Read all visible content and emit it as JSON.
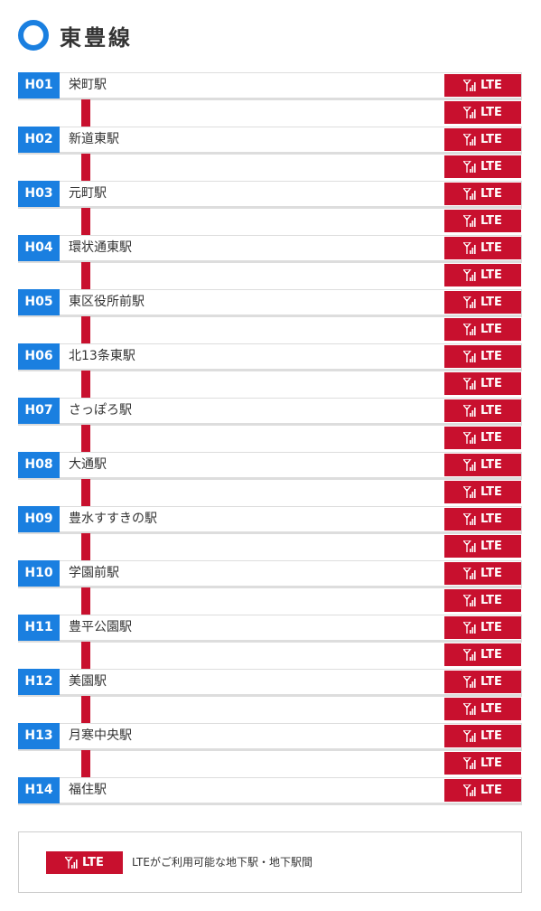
{
  "title": "東豊線",
  "stations": [
    {
      "code": "H01",
      "name": "栄町駅"
    },
    {
      "code": "H02",
      "name": "新道東駅"
    },
    {
      "code": "H03",
      "name": "元町駅"
    },
    {
      "code": "H04",
      "name": "環状通東駅"
    },
    {
      "code": "H05",
      "name": "東区役所前駅"
    },
    {
      "code": "H06",
      "name": "北13条東駅"
    },
    {
      "code": "H07",
      "name": "さっぽろ駅"
    },
    {
      "code": "H08",
      "name": "大通駅"
    },
    {
      "code": "H09",
      "name": "豊水すすきの駅"
    },
    {
      "code": "H10",
      "name": "学園前駅"
    },
    {
      "code": "H11",
      "name": "豊平公園駅"
    },
    {
      "code": "H12",
      "name": "美園駅"
    },
    {
      "code": "H13",
      "name": "月寒中央駅"
    },
    {
      "code": "H14",
      "name": "福住駅"
    }
  ],
  "lte_label": "LTE",
  "legend": {
    "badge": "LTE",
    "text": "LTEがご利用可能な地下駅・地下駅間"
  }
}
